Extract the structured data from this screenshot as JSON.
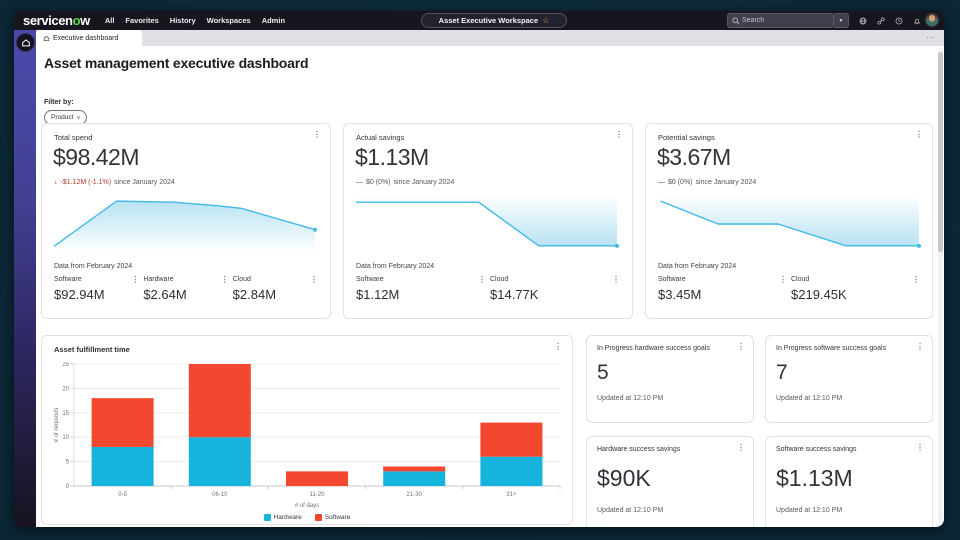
{
  "icons": {
    "kebab": "⋮",
    "star": "☆",
    "overflow": "…",
    "chevron_down": "∨",
    "dropdown_arrow": "▼"
  },
  "topnav": {
    "logo_prefix": "servicen",
    "logo_accent": "o",
    "logo_suffix": "w",
    "menu": [
      "All",
      "Favorites",
      "History",
      "Workspaces",
      "Admin"
    ],
    "workspace_label": "Asset Executive Workspace",
    "search_placeholder": "Search"
  },
  "tabbar": {
    "active_tab": "Executive dashboard"
  },
  "page": {
    "title": "Asset management executive dashboard",
    "filter_label": "Filter by:",
    "filter_value": "Product"
  },
  "kpis": [
    {
      "title": "Total spend",
      "value": "$98.42M",
      "delta_prefix": "↓",
      "delta_value": "-$1.12M (-1.1%)",
      "delta_suffix": "since January 2024",
      "delta_negative": true,
      "footnote": "Data from February 2024",
      "breakdown": [
        {
          "label": "Software",
          "value": "$92.94M"
        },
        {
          "label": "Hardware",
          "value": "$2.64M"
        },
        {
          "label": "Cloud",
          "value": "$2.84M"
        }
      ]
    },
    {
      "title": "Actual savings",
      "value": "$1.13M",
      "delta_prefix": "—",
      "delta_value": "$0 (0%)",
      "delta_suffix": "since January 2024",
      "delta_negative": false,
      "footnote": "Data from February 2024",
      "breakdown": [
        {
          "label": "Software",
          "value": "$1.12M"
        },
        {
          "label": "Cloud",
          "value": "$14.77K"
        }
      ]
    },
    {
      "title": "Potential savings",
      "value": "$3.67M",
      "delta_prefix": "—",
      "delta_value": "$0 (0%)",
      "delta_suffix": "since January 2024",
      "delta_negative": false,
      "footnote": "Data from February 2024",
      "breakdown": [
        {
          "label": "Software",
          "value": "$3.45M"
        },
        {
          "label": "Cloud",
          "value": "$219.45K"
        }
      ]
    }
  ],
  "stat_cards": [
    {
      "title": "In Progress hardware success goals",
      "value": "5",
      "updated": "Updated at 12:10 PM"
    },
    {
      "title": "In Progress software success goals",
      "value": "7",
      "updated": "Updated at 12:10 PM"
    },
    {
      "title": "Hardware success savings",
      "value": "$90K",
      "updated": "Updated at 12:10 PM"
    },
    {
      "title": "Software success savings",
      "value": "$1.13M",
      "updated": "Updated at 12:10 PM"
    }
  ],
  "bar_card": {
    "title": "Asset fulfillment time"
  },
  "chart_data": [
    {
      "type": "area",
      "name": "total-spend-trend",
      "line_color": "#41b9e6",
      "fill": "below",
      "points_pct": [
        [
          0,
          93
        ],
        [
          24,
          6
        ],
        [
          46,
          8
        ],
        [
          63,
          15
        ],
        [
          72,
          20
        ],
        [
          100,
          61
        ]
      ]
    },
    {
      "type": "area",
      "name": "actual-savings-trend",
      "line_color": "#41b9e6",
      "fill": "above",
      "points_pct": [
        [
          0,
          8
        ],
        [
          47,
          8
        ],
        [
          70,
          92
        ],
        [
          100,
          92
        ]
      ]
    },
    {
      "type": "area",
      "name": "potential-savings-trend",
      "line_color": "#41b9e6",
      "fill": "above",
      "points_pct": [
        [
          1,
          6
        ],
        [
          23,
          50
        ],
        [
          46,
          50
        ],
        [
          72,
          92
        ],
        [
          100,
          92
        ]
      ]
    },
    {
      "type": "bar",
      "name": "asset-fulfillment-time",
      "title": "Asset fulfillment time",
      "stacked": true,
      "categories": [
        "0-5",
        "06-10",
        "11-20",
        "21-30",
        "31+"
      ],
      "series": [
        {
          "name": "Hardware",
          "color": "#16b4dc",
          "values": [
            8,
            10,
            0,
            3,
            6
          ]
        },
        {
          "name": "Software",
          "color": "#f4472f",
          "values": [
            10,
            15,
            3,
            1,
            7
          ]
        }
      ],
      "xlabel": "# of days",
      "ylabel": "# of requests",
      "ylim": [
        0,
        25
      ],
      "yticks": [
        0,
        5,
        10,
        15,
        20,
        25
      ],
      "grid": true,
      "legend_position": "bottom"
    }
  ],
  "colors": {
    "accent_line": "#41b9e6",
    "bar_blue": "#16b4dc",
    "bar_red": "#f4472f",
    "delta_negative": "#b03a27",
    "brand_green": "#62d84e",
    "bezel": "#0d2a3a"
  }
}
